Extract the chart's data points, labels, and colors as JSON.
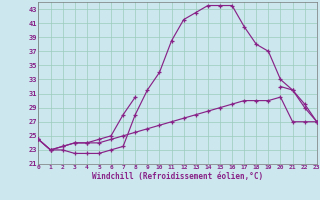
{
  "bg_color": "#cce8ee",
  "grid_color": "#99ccbb",
  "line_color": "#882288",
  "xlabel": "Windchill (Refroidissement éolien,°C)",
  "xlim": [
    0,
    23
  ],
  "ylim": [
    21,
    44
  ],
  "yticks": [
    21,
    23,
    25,
    27,
    29,
    31,
    33,
    35,
    37,
    39,
    41,
    43
  ],
  "xticks": [
    0,
    1,
    2,
    3,
    4,
    5,
    6,
    7,
    8,
    9,
    10,
    11,
    12,
    13,
    14,
    15,
    16,
    17,
    18,
    19,
    20,
    21,
    22,
    23
  ],
  "curve_upper_x": [
    0,
    1,
    2,
    3,
    4,
    5,
    6,
    7,
    8,
    9,
    10,
    11,
    12,
    13,
    14,
    15,
    16,
    17,
    18,
    19,
    20,
    21,
    22,
    23
  ],
  "curve_upper_y": [
    24.5,
    23.0,
    23.0,
    22.5,
    22.5,
    22.5,
    23.0,
    23.5,
    28.0,
    31.5,
    34.0,
    38.5,
    41.5,
    42.5,
    43.5,
    43.5,
    43.5,
    40.5,
    38.0,
    37.0,
    33.0,
    31.5,
    29.0,
    27.0
  ],
  "curve_mid_x": [
    0,
    1,
    2,
    3,
    4,
    5,
    6,
    7,
    8,
    9,
    10,
    11,
    12,
    13,
    14,
    15,
    16,
    17,
    18,
    19,
    20,
    21,
    22,
    23
  ],
  "curve_mid_y": [
    24.5,
    23.0,
    23.5,
    24.0,
    24.0,
    24.5,
    25.0,
    28.0,
    30.5,
    null,
    null,
    null,
    null,
    null,
    null,
    null,
    null,
    null,
    null,
    null,
    32.0,
    31.5,
    29.5,
    27.0
  ],
  "curve_bot_x": [
    0,
    1,
    2,
    3,
    4,
    5,
    6,
    7,
    8,
    9,
    10,
    11,
    12,
    13,
    14,
    15,
    16,
    17,
    18,
    19,
    20,
    21,
    22,
    23
  ],
  "curve_bot_y": [
    24.5,
    23.0,
    23.5,
    24.0,
    24.0,
    24.0,
    24.5,
    25.0,
    25.5,
    26.0,
    26.5,
    27.0,
    27.5,
    28.0,
    28.5,
    29.0,
    29.5,
    30.0,
    30.0,
    30.0,
    30.5,
    27.0,
    27.0,
    27.0
  ]
}
